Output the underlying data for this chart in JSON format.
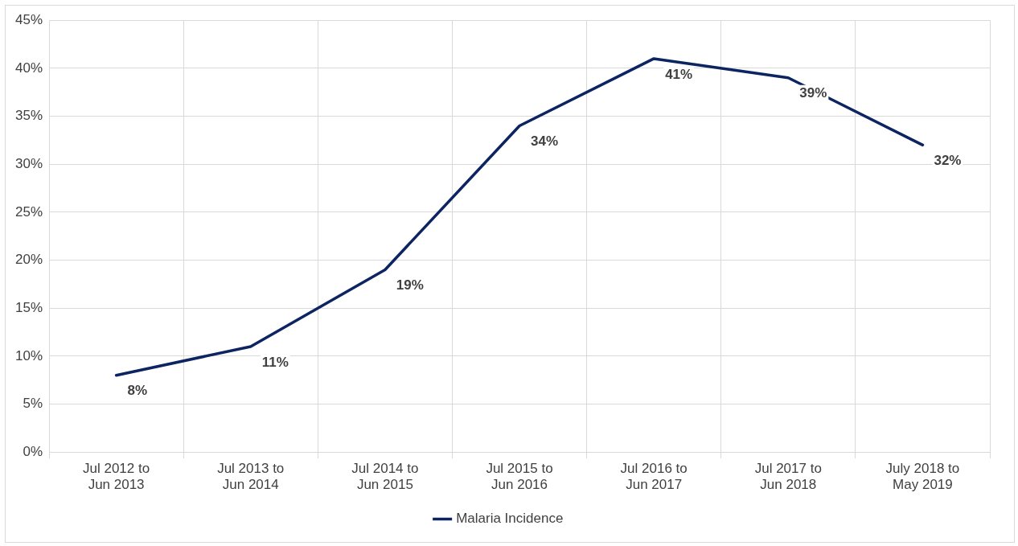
{
  "chart_data": {
    "type": "line",
    "categories": [
      "Jul 2012 to Jun 2013",
      "Jul 2013 to Jun 2014",
      "Jul 2014 to Jun 2015",
      "Jul 2015 to Jun 2016",
      "Jul 2016 to Jun 2017",
      "Jul 2017 to Jun 2018",
      "July 2018 to May 2019"
    ],
    "series": [
      {
        "name": "Malaria Incidence",
        "color": "#0c2461",
        "values": [
          8,
          11,
          19,
          34,
          41,
          39,
          32
        ]
      }
    ],
    "ylim": [
      0,
      45
    ],
    "yticks": [
      {
        "value": 0,
        "label": "0%"
      },
      {
        "value": 5,
        "label": "5%"
      },
      {
        "value": 10,
        "label": "10%"
      },
      {
        "value": 15,
        "label": "15%"
      },
      {
        "value": 20,
        "label": "20%"
      },
      {
        "value": 25,
        "label": "25%"
      },
      {
        "value": 30,
        "label": "30%"
      },
      {
        "value": 35,
        "label": "35%"
      },
      {
        "value": 40,
        "label": "40%"
      },
      {
        "value": 45,
        "label": "45%"
      }
    ],
    "value_labels": [
      "8%",
      "11%",
      "19%",
      "34%",
      "41%",
      "39%",
      "32%"
    ],
    "grid": true,
    "legend": "bottom",
    "marker": "none",
    "line_style": "solid"
  }
}
